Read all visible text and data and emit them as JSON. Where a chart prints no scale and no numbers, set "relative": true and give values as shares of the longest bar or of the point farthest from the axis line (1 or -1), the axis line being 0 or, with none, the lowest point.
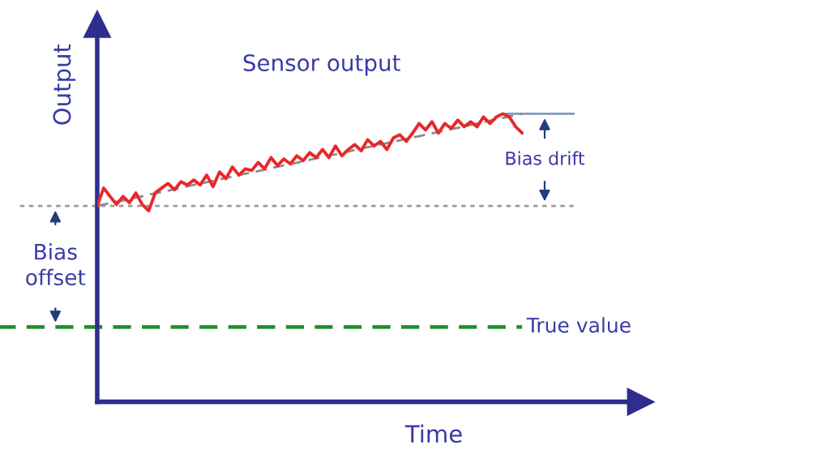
{
  "chart_data": {
    "type": "line",
    "relative": true,
    "xlabel": "Time",
    "ylabel": "Output",
    "categories": [
      null,
      null,
      null,
      null,
      null,
      null,
      null,
      null,
      null,
      null,
      null,
      null,
      null,
      null,
      null,
      null,
      null,
      null,
      null,
      null,
      null,
      null,
      null,
      null,
      null,
      null,
      null,
      null,
      null,
      null,
      null,
      null,
      null,
      null,
      null,
      null,
      null,
      null,
      null,
      null,
      null,
      null,
      null,
      null,
      null,
      null,
      null,
      null,
      null,
      null,
      null,
      null,
      null,
      null,
      null,
      null,
      null,
      null,
      null,
      null,
      null,
      null,
      null,
      null,
      null,
      null,
      null
    ],
    "series": [
      {
        "color": "#e8282b",
        "line_style": "solid",
        "values": [
          0.68,
          0.742,
          0.713,
          0.685,
          0.713,
          0.691,
          0.725,
          0.685,
          0.663,
          0.725,
          0.742,
          0.758,
          0.736,
          0.764,
          0.753,
          0.77,
          0.753,
          0.787,
          0.747,
          0.798,
          0.775,
          0.815,
          0.787,
          0.809,
          0.803,
          0.831,
          0.809,
          0.848,
          0.82,
          0.843,
          0.826,
          0.854,
          0.837,
          0.865,
          0.848,
          0.876,
          0.848,
          0.888,
          0.854,
          0.876,
          0.893,
          0.871,
          0.91,
          0.888,
          0.904,
          0.876,
          0.916,
          0.927,
          0.904,
          0.933,
          0.966,
          0.944,
          0.972,
          0.933,
          0.966,
          0.949,
          0.978,
          0.955,
          0.972,
          0.955,
          0.989,
          0.966,
          0.989,
          1.0,
          0.989,
          0.955,
          0.933
        ]
      },
      {
        "color": "#8c8c8c",
        "line_style": "dashed",
        "values": [
          0.68,
          0.685,
          0.69,
          0.695,
          0.699,
          0.704,
          0.709,
          0.714,
          0.719,
          0.724,
          0.728,
          0.733,
          0.738,
          0.743,
          0.748,
          0.753,
          0.758,
          0.762,
          0.767,
          0.772,
          0.777,
          0.782,
          0.787,
          0.792,
          0.796,
          0.801,
          0.806,
          0.811,
          0.816,
          0.821,
          0.825,
          0.83,
          0.835,
          0.84,
          0.845,
          0.85,
          0.855,
          0.859,
          0.864,
          0.869,
          0.874,
          0.879,
          0.884,
          0.888,
          0.893,
          0.898,
          0.903,
          0.908,
          0.913,
          0.918,
          0.922,
          0.927,
          0.932,
          0.937,
          0.942,
          0.947,
          0.951,
          0.956,
          0.961,
          0.966,
          0.971,
          0.976,
          0.981,
          0.985,
          0.99,
          0.995,
          1.0
        ]
      }
    ],
    "ref_lines": [
      {
        "axis": "y",
        "value": 0.68,
        "color": "#9a9a9a",
        "line_style": "dotted"
      },
      {
        "axis": "y",
        "value": 0.26,
        "color": "#1e8c28",
        "line_style": "dashed",
        "label": "True value"
      }
    ],
    "annotations": [
      "Sensor output",
      "Bias drift",
      "Bias offset"
    ]
  }
}
